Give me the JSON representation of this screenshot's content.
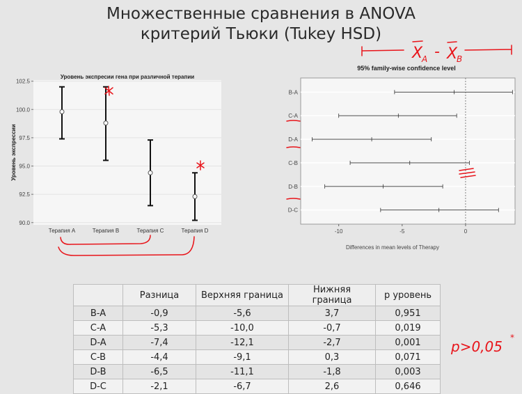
{
  "slide": {
    "title_line1": "Множественные сравнения в ANOVA",
    "title_line2": "критерий Тьюки (Tukey HSD)"
  },
  "chart_data": [
    {
      "type": "errorbar",
      "title": "Уровень экспресии гена при различной терапии",
      "xlabel": "",
      "ylabel": "Уровень экспрессии",
      "categories": [
        "Терапия A",
        "Терапия B",
        "Терапия C",
        "Терапия D"
      ],
      "mean": [
        99.8,
        98.8,
        94.4,
        92.3
      ],
      "lower": [
        97.4,
        95.5,
        91.5,
        90.2
      ],
      "upper": [
        102.0,
        102.0,
        97.3,
        94.4
      ],
      "ylim": [
        89.8,
        102.6
      ],
      "yticks": [
        "102.5",
        "100.0",
        "97.5",
        "95.0",
        "92.5",
        "90.0"
      ],
      "ytick_values": [
        102.5,
        100.0,
        97.5,
        95.0,
        92.5,
        90.0
      ],
      "grid": true
    },
    {
      "type": "interval",
      "title": "95% family-wise confidence level",
      "xlabel": "Differences in mean levels of Therapy",
      "ylabel": "",
      "categories": [
        "B-A",
        "C-A",
        "D-A",
        "C-B",
        "D-B",
        "D-C"
      ],
      "diff": [
        -0.9,
        -5.3,
        -7.4,
        -4.4,
        -6.5,
        -2.1
      ],
      "lwr": [
        -5.6,
        -10.0,
        -12.1,
        -9.1,
        -11.1,
        -6.7
      ],
      "upr": [
        3.7,
        -0.7,
        -2.7,
        0.3,
        -1.8,
        2.6
      ],
      "xticks": [
        "-10",
        "-5",
        "0"
      ],
      "xtick_values": [
        -10,
        -5,
        0
      ],
      "xlim": [
        -13.0,
        3.9
      ],
      "reference_line": 0
    }
  ],
  "annotations": {
    "formula_a": "X",
    "formula_a_sub": "A",
    "minus": "-",
    "formula_b": "X",
    "formula_b_sub": "B",
    "note": "p>0,05",
    "note_star": "*",
    "table_star": "*"
  },
  "table": {
    "headers": [
      "",
      "Разница",
      "Верхняя граница",
      "Нижняя граница",
      "p уровень"
    ],
    "rows": [
      [
        "B-A",
        "-0,9",
        "-5,6",
        "3,7",
        "0,951"
      ],
      [
        "C-A",
        "-5,3",
        "-10,0",
        "-0,7",
        "0,019"
      ],
      [
        "D-A",
        "-7,4",
        "-12,1",
        "-2,7",
        "0,001"
      ],
      [
        "C-B",
        "-4,4",
        "-9,1",
        "0,3",
        "0,071"
      ],
      [
        "D-B",
        "-6,5",
        "-11,1",
        "-1,8",
        "0,003"
      ],
      [
        "D-C",
        "-2,1",
        "-6,7",
        "2,6",
        "0,646"
      ]
    ]
  },
  "colors": {
    "annotation": "#e8141a",
    "bar": "#111111",
    "panel": "#f6f6f6",
    "slide": "#e6e6e6"
  }
}
